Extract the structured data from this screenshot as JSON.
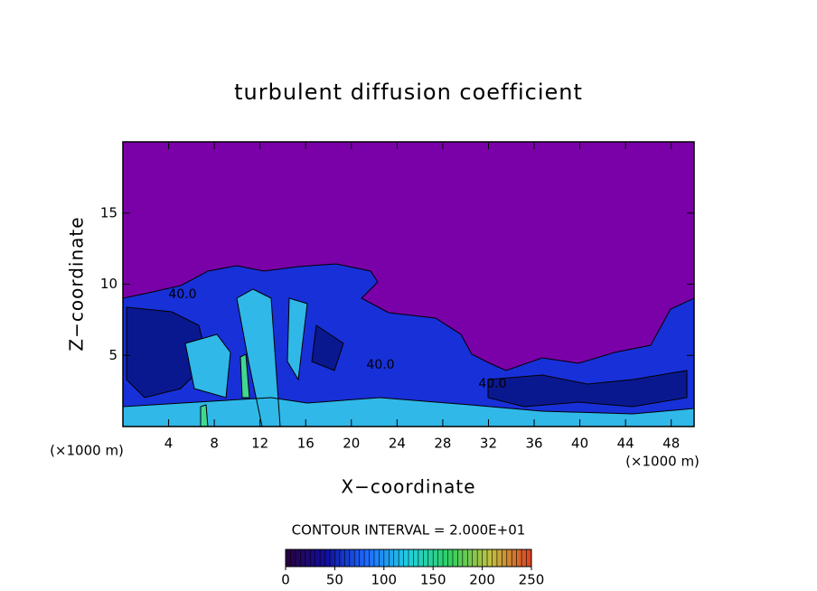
{
  "chart_data": {
    "type": "contour",
    "title": "turbulent diffusion coefficient",
    "x_label": "X−coordinate",
    "y_label": "Z−coordinate",
    "x_unit": "(×1000 m)",
    "y_unit": "(×1000 m)",
    "xlim": [
      0,
      50
    ],
    "xticks": [
      4,
      8,
      12,
      16,
      20,
      24,
      28,
      32,
      36,
      40,
      44,
      48
    ],
    "ylim": [
      0,
      20
    ],
    "yticks": [
      5,
      10,
      15
    ],
    "contour_labels": [
      "40.0",
      "40.0",
      "40.0"
    ],
    "contour_interval_text": "CONTOUR INTERVAL = 2.000E+01",
    "colorbar": {
      "lim": [
        0,
        250
      ],
      "ticks": [
        0,
        50,
        100,
        150,
        200,
        250
      ],
      "colors": [
        "#2a0040",
        "#1010a0",
        "#1e6cff",
        "#20d0e0",
        "#30d060",
        "#c0c040",
        "#e04020"
      ]
    }
  }
}
